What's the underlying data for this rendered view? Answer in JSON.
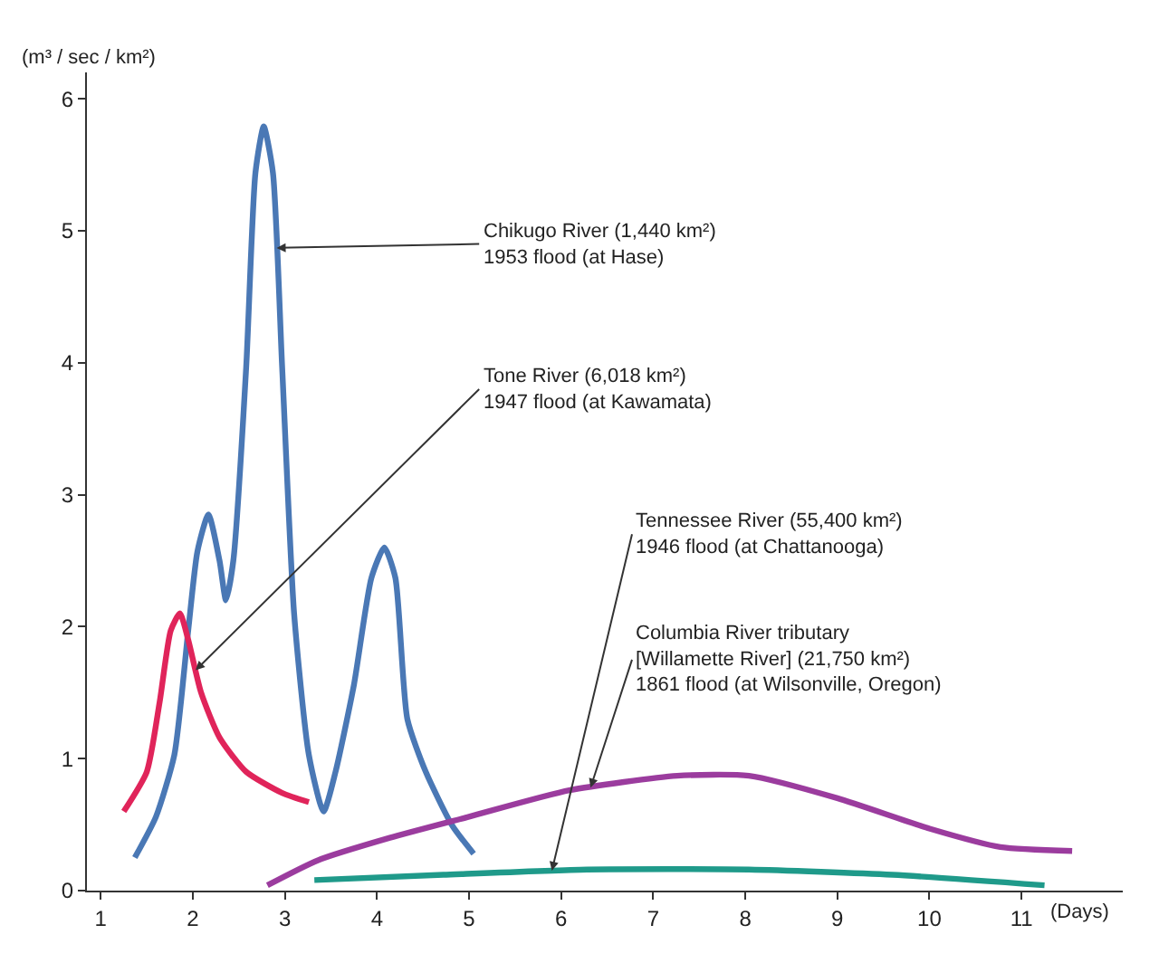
{
  "chart_data": {
    "type": "line",
    "xlabel": "(Days)",
    "ylabel": "(m³ / sec / km²)",
    "xlim": [
      0.85,
      12.1
    ],
    "ylim": [
      0,
      6.2
    ],
    "xticks": [
      1,
      2,
      3,
      4,
      5,
      6,
      7,
      8,
      9,
      10,
      11
    ],
    "yticks": [
      0,
      1,
      2,
      3,
      4,
      5,
      6
    ],
    "marker": "none",
    "line_style": "solid",
    "series": [
      {
        "color": "#4a78b5",
        "x": [
          1.37,
          1.6,
          1.8,
          1.95,
          2.05,
          2.17,
          2.29,
          2.36,
          2.44,
          2.58,
          2.68,
          2.77,
          2.87,
          2.97,
          3.1,
          3.26,
          3.42,
          3.55,
          3.75,
          3.94,
          4.08,
          4.2,
          4.33,
          4.53,
          4.82,
          5.05
        ],
        "values": [
          0.25,
          0.56,
          1.03,
          1.97,
          2.57,
          2.85,
          2.5,
          2.2,
          2.5,
          3.97,
          5.44,
          5.79,
          5.44,
          3.97,
          2.1,
          1.03,
          0.6,
          0.9,
          1.56,
          2.37,
          2.6,
          2.37,
          1.3,
          0.9,
          0.49,
          0.28
        ]
      },
      {
        "color": "#e0245a",
        "x": [
          1.25,
          1.5,
          1.64,
          1.76,
          1.86,
          1.95,
          2.09,
          2.29,
          2.58,
          2.97,
          3.26
        ],
        "values": [
          0.6,
          0.9,
          1.43,
          1.97,
          2.1,
          1.9,
          1.5,
          1.16,
          0.9,
          0.74,
          0.67
        ]
      },
      {
        "color": "#9b3c9e",
        "x": [
          2.81,
          3.36,
          4.14,
          5.0,
          6.09,
          7.26,
          8.04,
          9.0,
          10.0,
          10.77,
          11.55
        ],
        "values": [
          0.04,
          0.23,
          0.4,
          0.56,
          0.76,
          0.87,
          0.87,
          0.7,
          0.47,
          0.33,
          0.3
        ]
      },
      {
        "color": "#1f9a8a",
        "x": [
          3.32,
          4.72,
          6.28,
          8.04,
          9.6,
          11.25
        ],
        "values": [
          0.08,
          0.12,
          0.16,
          0.16,
          0.12,
          0.04
        ]
      }
    ],
    "annotations": [
      {
        "text": "Chikugo River (1,440 km²)\n1953 flood (at Hase)",
        "x": 2.91,
        "y": 4.87
      },
      {
        "text": "Tone River (6,018 km²)\n1947 flood (at Kawamata)",
        "x": 2.03,
        "y": 1.67
      },
      {
        "text": "Tennessee River (55,400 km²)\n1946 flood (at Chattanooga)",
        "x": 5.9,
        "y": 0.15
      },
      {
        "text": "Columbia River tributary\n[Willamette River] (21,750 km²)\n1861 flood (at Wilsonville, Oregon)",
        "x": 6.32,
        "y": 0.78
      }
    ]
  }
}
